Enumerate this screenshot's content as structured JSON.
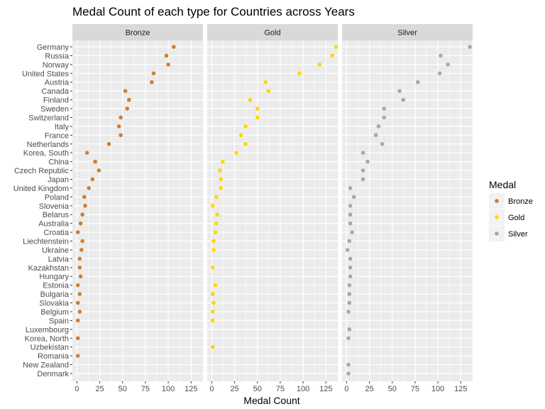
{
  "chart_data": {
    "type": "scatter",
    "title": "Medal Count of each type for Countries across Years",
    "xlabel": "Medal Count",
    "ylabel": "",
    "xlim": [
      -5,
      138
    ],
    "xticks": [
      0,
      25,
      50,
      75,
      100,
      125
    ],
    "facets": [
      "Bronze",
      "Gold",
      "Silver"
    ],
    "legend": {
      "title": "Medal",
      "placement": "right",
      "entries": [
        "Bronze",
        "Gold",
        "Silver"
      ]
    },
    "colors": {
      "Bronze": "#cd7f32",
      "Gold": "#ffd700",
      "Silver": "#a8a8a8"
    },
    "panel_background": "#ebebeb",
    "strip_background": "#d9d9d9",
    "grid": true,
    "countries": [
      "Germany",
      "Russia",
      "Norway",
      "United States",
      "Austria",
      "Canada",
      "Finland",
      "Sweden",
      "Switzerland",
      "Italy",
      "France",
      "Netherlands",
      "Korea, South",
      "China",
      "Czech Republic",
      "Japan",
      "United Kingdom",
      "Poland",
      "Slovenia",
      "Belarus",
      "Australia",
      "Croatia",
      "Liechtenstein",
      "Ukraine",
      "Latvia",
      "Kazakhstan",
      "Hungary",
      "Estonia",
      "Bulgaria",
      "Slovakia",
      "Belgium",
      "Spain",
      "Luxembourg",
      "Korea, North",
      "Uzbekistan",
      "Romania",
      "New Zealand",
      "Denmark"
    ],
    "series": [
      {
        "name": "Bronze",
        "values": [
          106,
          98,
          100,
          84,
          82,
          53,
          57,
          55,
          48,
          46,
          48,
          35,
          11,
          20,
          24,
          17,
          13,
          8,
          9,
          6,
          4,
          1,
          6,
          5,
          3,
          3,
          4,
          1,
          3,
          1,
          3,
          1,
          null,
          1,
          null,
          1,
          null,
          null
        ]
      },
      {
        "name": "Gold",
        "values": [
          136,
          132,
          118,
          96,
          59,
          62,
          42,
          50,
          50,
          37,
          32,
          37,
          27,
          12,
          9,
          10,
          10,
          5,
          1,
          6,
          5,
          4,
          2,
          2,
          null,
          1,
          null,
          4,
          1,
          2,
          1,
          1,
          null,
          null,
          1,
          null,
          null,
          null
        ]
      },
      {
        "name": "Silver",
        "values": [
          135,
          103,
          111,
          102,
          78,
          58,
          62,
          41,
          41,
          35,
          32,
          39,
          18,
          23,
          18,
          18,
          4,
          8,
          4,
          4,
          4,
          6,
          3,
          1,
          4,
          4,
          4,
          3,
          3,
          3,
          2,
          null,
          3,
          2,
          null,
          null,
          2,
          2
        ]
      }
    ]
  }
}
